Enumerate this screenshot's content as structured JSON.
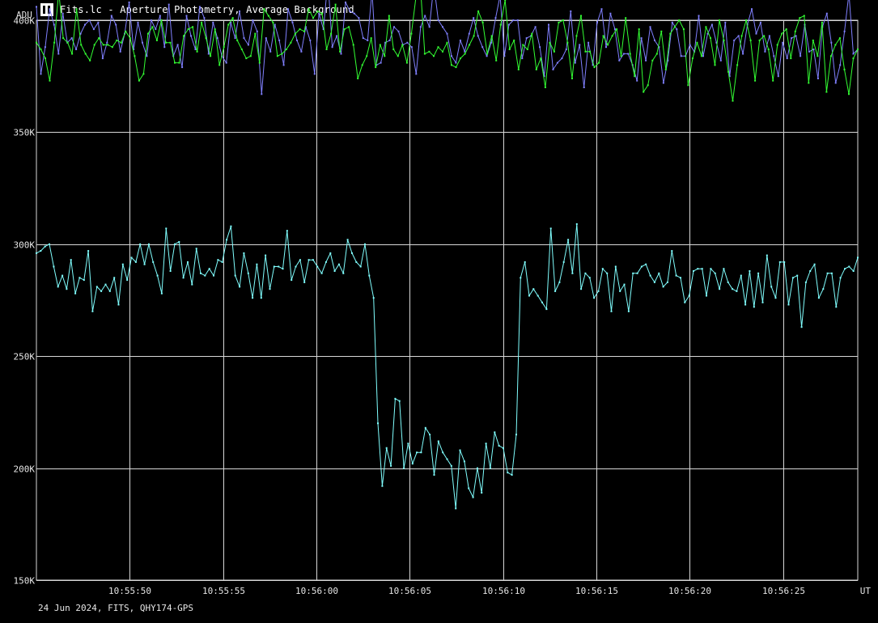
{
  "window": {
    "title": "Fits.lc - Aperture Photometry, Average Background"
  },
  "footer": {
    "text": "24 Jun 2024, FITS, QHY174-GPS"
  },
  "chart_data": {
    "type": "line",
    "ylabel": "ADU",
    "xlabel": "UT",
    "ylim": [
      150000,
      400000
    ],
    "ytick_values": [
      150000,
      200000,
      250000,
      300000,
      350000,
      400000
    ],
    "ytick_labels": [
      "150K",
      "200K",
      "250K",
      "300K",
      "350K",
      "400K"
    ],
    "xlim": [
      "10:55:45",
      "10:56:29"
    ],
    "xtick_labels": [
      "10:55:50",
      "10:55:55",
      "10:56:00",
      "10:56:05",
      "10:56:10",
      "10:56:15",
      "10:56:20",
      "10:56:25"
    ],
    "grid": true,
    "series": [
      {
        "color": "#8080ff",
        "x_start": "10:55:45",
        "x_end": "10:56:29",
        "values": [
          406000,
          376000,
          388000,
          405000,
          398000,
          385000,
          403000,
          390000,
          392000,
          387000,
          394000,
          398000,
          400000,
          396000,
          399000,
          383000,
          390000,
          402000,
          398000,
          386000,
          394000,
          408000,
          387000,
          399000,
          390000,
          384000,
          400000,
          396000,
          402000,
          388000,
          407000,
          384000,
          389000,
          379000,
          402000,
          393000,
          387000,
          406000,
          401000,
          385000,
          399000,
          392000,
          384000,
          381000,
          399000,
          392000,
          404000,
          392000,
          389000,
          400000,
          395000,
          367000,
          392000,
          386000,
          398000,
          391000,
          380000,
          405000,
          399000,
          391000,
          386000,
          397000,
          391000,
          376000,
          403000,
          396000,
          418000,
          388000,
          393000,
          385000,
          408000,
          404000,
          403000,
          401000,
          392000,
          391000,
          413000,
          380000,
          381000,
          390000,
          391000,
          397000,
          395000,
          389000,
          390000,
          388000,
          376000,
          397000,
          402000,
          397000,
          416000,
          400000,
          397000,
          394000,
          384000,
          381000,
          391000,
          386000,
          394000,
          401000,
          393000,
          388000,
          384000,
          390000,
          401000,
          411000,
          384000,
          398000,
          400000,
          400000,
          383000,
          392000,
          393000,
          397000,
          388000,
          375000,
          398000,
          378000,
          381000,
          383000,
          387000,
          404000,
          381000,
          389000,
          370000,
          390000,
          380000,
          399000,
          405000,
          388000,
          403000,
          396000,
          382000,
          385000,
          385000,
          380000,
          373000,
          392000,
          382000,
          397000,
          391000,
          388000,
          372000,
          382000,
          399000,
          396000,
          384000,
          384000,
          389000,
          386000,
          402000,
          384000,
          394000,
          398000,
          390000,
          382000,
          399000,
          375000,
          391000,
          393000,
          385000,
          398000,
          405000,
          394000,
          399000,
          386000,
          393000,
          384000,
          375000,
          390000,
          383000,
          392000,
          393000,
          384000,
          398000,
          386000,
          387000,
          374000,
          397000,
          403000,
          390000,
          372000,
          380000,
          395000,
          412000,
          385000,
          387000
        ]
      },
      {
        "color": "#33ff33",
        "x_start": "10:55:45",
        "x_end": "10:56:29",
        "values": [
          390000,
          387000,
          383000,
          373000,
          390000,
          413000,
          392000,
          390000,
          385000,
          405000,
          389000,
          385000,
          382000,
          389000,
          392000,
          389000,
          389000,
          388000,
          391000,
          390000,
          395000,
          392000,
          384000,
          373000,
          376000,
          394000,
          397000,
          391000,
          400000,
          390000,
          390000,
          381000,
          381000,
          393000,
          396000,
          397000,
          386000,
          399000,
          392000,
          384000,
          396000,
          380000,
          388000,
          398000,
          401000,
          391000,
          387000,
          383000,
          384000,
          394000,
          381000,
          405000,
          402000,
          399000,
          384000,
          385000,
          387000,
          390000,
          394000,
          396000,
          395000,
          405000,
          401000,
          404000,
          403000,
          387000,
          394000,
          407000,
          386000,
          396000,
          397000,
          389000,
          374000,
          380000,
          384000,
          392000,
          379000,
          389000,
          384000,
          402000,
          387000,
          384000,
          389000,
          381000,
          394000,
          410000,
          416000,
          385000,
          386000,
          384000,
          388000,
          386000,
          390000,
          380000,
          379000,
          383000,
          385000,
          389000,
          393000,
          404000,
          399000,
          385000,
          393000,
          382000,
          398000,
          409000,
          387000,
          391000,
          378000,
          389000,
          387000,
          394000,
          378000,
          383000,
          370000,
          390000,
          386000,
          399000,
          400000,
          390000,
          374000,
          393000,
          402000,
          386000,
          386000,
          379000,
          381000,
          393000,
          389000,
          393000,
          396000,
          384000,
          401000,
          385000,
          375000,
          396000,
          368000,
          371000,
          382000,
          385000,
          395000,
          378000,
          394000,
          397000,
          400000,
          396000,
          371000,
          383000,
          390000,
          384000,
          397000,
          392000,
          380000,
          400000,
          391000,
          377000,
          364000,
          380000,
          393000,
          400000,
          391000,
          373000,
          391000,
          393000,
          387000,
          373000,
          389000,
          394000,
          396000,
          383000,
          395000,
          401000,
          402000,
          372000,
          391000,
          384000,
          399000,
          368000,
          384000,
          389000,
          392000,
          378000,
          367000,
          383000,
          387000
        ]
      },
      {
        "color": "#80ffff",
        "x_start": "10:55:45",
        "x_end": "10:56:29",
        "values": [
          296000,
          297000,
          299000,
          300000,
          290000,
          281000,
          286000,
          280000,
          293000,
          278000,
          285000,
          284000,
          297000,
          270000,
          281000,
          279000,
          282000,
          279000,
          285000,
          273000,
          291000,
          284000,
          294000,
          292000,
          300000,
          291000,
          300000,
          292000,
          286000,
          278000,
          307000,
          288000,
          300000,
          301000,
          285000,
          292000,
          282000,
          298000,
          287000,
          286000,
          289000,
          286000,
          293000,
          292000,
          302000,
          308000,
          286000,
          281000,
          296000,
          287000,
          276000,
          291000,
          276000,
          295000,
          280000,
          290000,
          290000,
          289000,
          306000,
          284000,
          290000,
          293000,
          283000,
          293000,
          293000,
          290000,
          287000,
          292000,
          296000,
          288000,
          291000,
          287000,
          302000,
          296000,
          292000,
          290000,
          300000,
          286000,
          276000,
          220000,
          192000,
          209000,
          201000,
          231000,
          230000,
          200000,
          211000,
          202000,
          207000,
          207000,
          218000,
          215000,
          197000,
          212000,
          207000,
          204000,
          201000,
          182000,
          208000,
          203000,
          191000,
          187000,
          200000,
          189000,
          211000,
          200000,
          216000,
          210000,
          209000,
          198000,
          197000,
          215000,
          285000,
          292000,
          277000,
          280000,
          277000,
          274000,
          271000,
          307000,
          279000,
          283000,
          292000,
          302000,
          287000,
          309000,
          280000,
          287000,
          285000,
          276000,
          279000,
          289000,
          287000,
          270000,
          290000,
          279000,
          282000,
          270000,
          287000,
          287000,
          290000,
          291000,
          286000,
          283000,
          287000,
          281000,
          283000,
          297000,
          286000,
          285000,
          274000,
          277000,
          288000,
          289000,
          289000,
          277000,
          289000,
          287000,
          280000,
          289000,
          283000,
          280000,
          279000,
          286000,
          273000,
          288000,
          272000,
          287000,
          274000,
          295000,
          281000,
          276000,
          292000,
          292000,
          273000,
          285000,
          286000,
          263000,
          283000,
          288000,
          291000,
          276000,
          280000,
          287000,
          287000,
          272000,
          285000,
          289000,
          290000,
          288000,
          294000
        ]
      }
    ]
  }
}
